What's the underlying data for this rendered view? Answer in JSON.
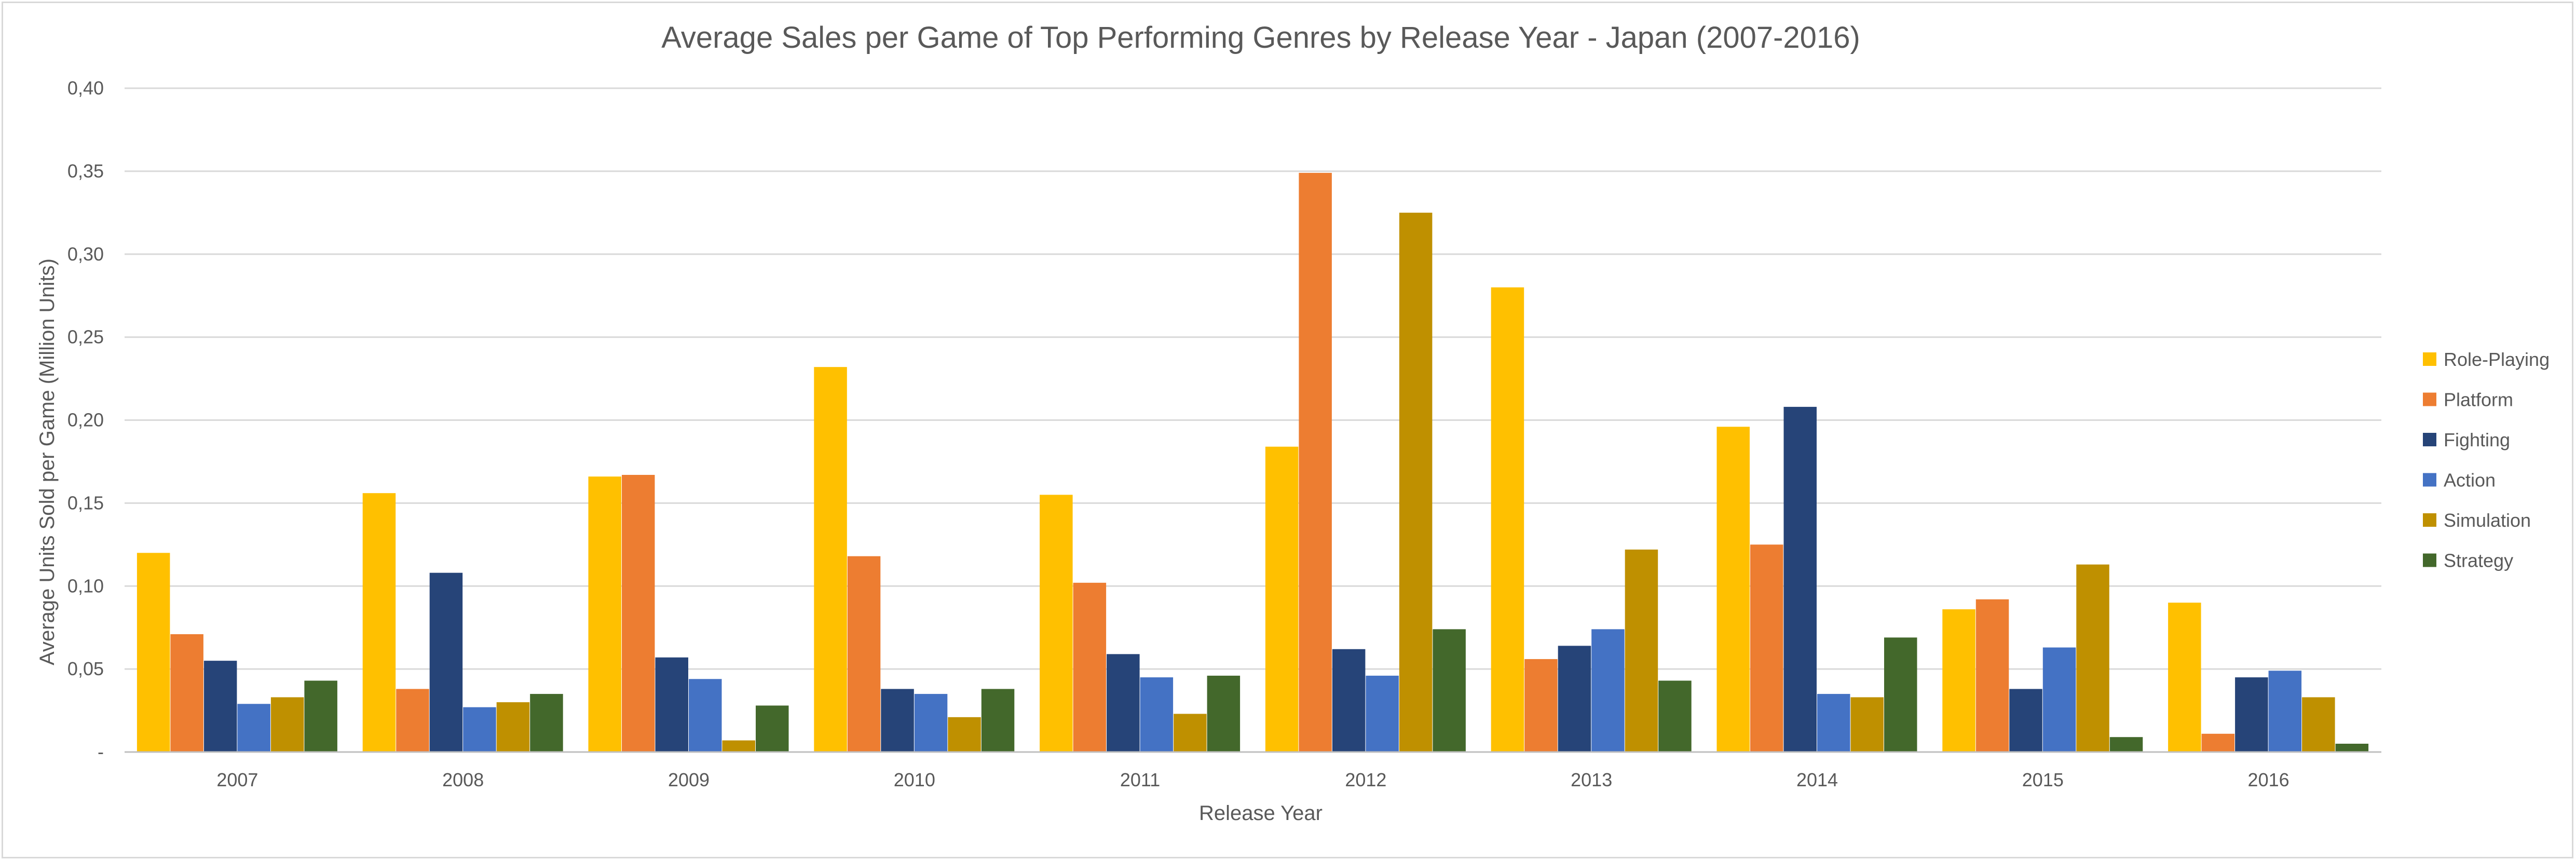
{
  "chart_data": {
    "type": "bar",
    "title": "Average Sales per Game of Top Performing Genres by Release Year - Japan (2007-2016)",
    "xlabel": "Release Year",
    "ylabel": "Average Units Sold per Game (Million Units)",
    "ylim": [
      0,
      0.4
    ],
    "yticks": [
      {
        "value": 0,
        "label": "-"
      },
      {
        "value": 0.05,
        "label": "0,05"
      },
      {
        "value": 0.1,
        "label": "0,10"
      },
      {
        "value": 0.15,
        "label": "0,15"
      },
      {
        "value": 0.2,
        "label": "0,20"
      },
      {
        "value": 0.25,
        "label": "0,25"
      },
      {
        "value": 0.3,
        "label": "0,30"
      },
      {
        "value": 0.35,
        "label": "0,35"
      },
      {
        "value": 0.4,
        "label": "0,40"
      }
    ],
    "grid": true,
    "legend_position": "right",
    "categories": [
      "2007",
      "2008",
      "2009",
      "2010",
      "2011",
      "2012",
      "2013",
      "2014",
      "2015",
      "2016"
    ],
    "series": [
      {
        "name": "Role-Playing",
        "color": "#FFC000",
        "values": [
          0.12,
          0.156,
          0.166,
          0.232,
          0.155,
          0.184,
          0.28,
          0.196,
          0.086,
          0.09
        ]
      },
      {
        "name": "Platform",
        "color": "#ED7D31",
        "values": [
          0.071,
          0.038,
          0.167,
          0.118,
          0.102,
          0.349,
          0.056,
          0.125,
          0.092,
          0.011
        ]
      },
      {
        "name": "Fighting",
        "color": "#264478",
        "values": [
          0.055,
          0.108,
          0.057,
          0.038,
          0.059,
          0.062,
          0.064,
          0.208,
          0.038,
          0.045
        ]
      },
      {
        "name": "Action",
        "color": "#4472C4",
        "values": [
          0.029,
          0.027,
          0.044,
          0.035,
          0.045,
          0.046,
          0.074,
          0.035,
          0.063,
          0.049
        ]
      },
      {
        "name": "Simulation",
        "color": "#BF9000",
        "values": [
          0.033,
          0.03,
          0.007,
          0.021,
          0.023,
          0.325,
          0.122,
          0.033,
          0.113,
          0.033
        ]
      },
      {
        "name": "Strategy",
        "color": "#43682B",
        "values": [
          0.043,
          0.035,
          0.028,
          0.038,
          0.046,
          0.074,
          0.043,
          0.069,
          0.009,
          0.005
        ]
      }
    ]
  }
}
